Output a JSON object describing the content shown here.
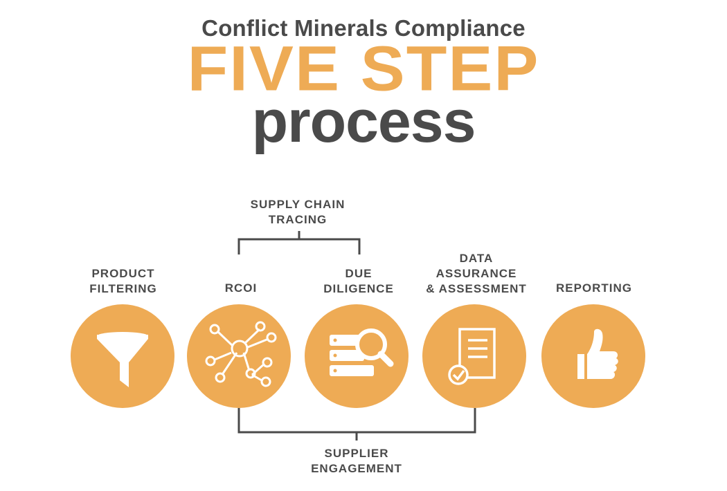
{
  "title": {
    "line1": "Conflict Minerals Compliance",
    "line2": "FIVE STEP",
    "line3": "process"
  },
  "colors": {
    "accent": "#eeab55",
    "text": "#4a4a4a",
    "icon": "#ffffff"
  },
  "groups": {
    "top": "SUPPLY CHAIN\nTRACING",
    "bottom": "SUPPLIER\nENGAGEMENT"
  },
  "steps": [
    {
      "label": "PRODUCT\nFILTERING",
      "icon": "funnel-icon"
    },
    {
      "label": "RCOI",
      "icon": "network-icon"
    },
    {
      "label": "DUE\nDILIGENCE",
      "icon": "database-search-icon"
    },
    {
      "label": "DATA\nASSURANCE\n& ASSESSMENT",
      "icon": "document-check-icon"
    },
    {
      "label": "REPORTING",
      "icon": "thumbs-up-icon"
    }
  ]
}
